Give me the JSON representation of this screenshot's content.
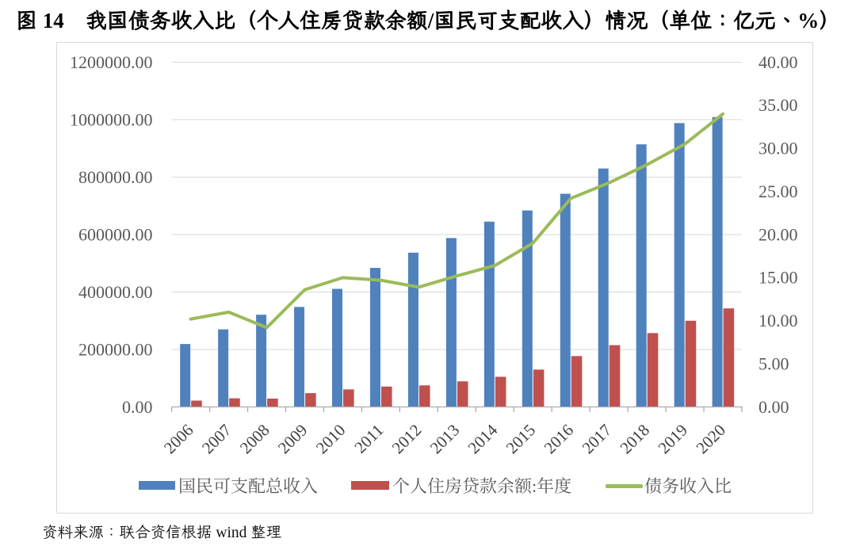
{
  "figure": {
    "title": "图 14　我国债务收入比（个人住房贷款余额/国民可支配收入）情况（单位：亿元、%）",
    "source_note": "资料来源：联合资信根据 wind 整理"
  },
  "legend": {
    "items": [
      {
        "label": "国民可支配总收入",
        "swatch": "bar",
        "color": "#4F81BD"
      },
      {
        "label": "个人住房贷款余额:年度",
        "swatch": "bar",
        "color": "#C0504D"
      },
      {
        "label": "债务收入比",
        "swatch": "line",
        "color": "#9BBB59"
      }
    ]
  },
  "colors": {
    "income_bar": "#4F81BD",
    "loan_bar": "#C0504D",
    "ratio_line": "#9BBB59",
    "gridline": "#D9D9D9",
    "chart_border": "#D9D9D9",
    "axis_line": "#ACACAC",
    "axis_tick_label": "#595959",
    "year_label": "#404040",
    "legend_text": "#595959"
  },
  "chart_data": {
    "type": "bar",
    "subtype": "combo-bar-line",
    "title": "图 14　我国债务收入比（个人住房贷款余额/国民可支配收入）情况（单位：亿元、%）",
    "categories": [
      "2006",
      "2007",
      "2008",
      "2009",
      "2010",
      "2011",
      "2012",
      "2013",
      "2014",
      "2015",
      "2016",
      "2017",
      "2018",
      "2019",
      "2020"
    ],
    "series": [
      {
        "name": "国民可支配总收入",
        "type": "bar",
        "axis": "left",
        "color": "#4F81BD",
        "values": [
          219000,
          270000,
          321000,
          348000,
          411000,
          484000,
          537000,
          588000,
          645000,
          684000,
          742000,
          830000,
          914000,
          988000,
          1009000
        ]
      },
      {
        "name": "个人住房贷款余额:年度",
        "type": "bar",
        "axis": "left",
        "color": "#C0504D",
        "values": [
          22000,
          30000,
          29000,
          48000,
          61000,
          71000,
          75000,
          89000,
          105000,
          130000,
          177000,
          215000,
          257000,
          300000,
          343000
        ]
      },
      {
        "name": "债务收入比",
        "type": "line",
        "axis": "right",
        "color": "#9BBB59",
        "values": [
          10.2,
          11.0,
          9.2,
          13.6,
          15.0,
          14.7,
          13.9,
          15.2,
          16.4,
          19.0,
          24.2,
          26.0,
          28.1,
          30.5,
          34.0
        ]
      }
    ],
    "left_axis": {
      "min": 0,
      "max": 1200000,
      "step": 200000,
      "tick_labels": [
        "1200000.00",
        "1000000.00",
        "800000.00",
        "600000.00",
        "400000.00",
        "200000.00",
        "0.00"
      ]
    },
    "right_axis": {
      "min": 0,
      "max": 40,
      "step": 5,
      "tick_labels": [
        "40.00",
        "35.00",
        "30.00",
        "25.00",
        "20.00",
        "15.00",
        "10.00",
        "5.00",
        "0.00"
      ]
    },
    "xlabel": "",
    "ylabel": "",
    "grid": true,
    "legend_position": "bottom",
    "units": "亿元、%"
  }
}
